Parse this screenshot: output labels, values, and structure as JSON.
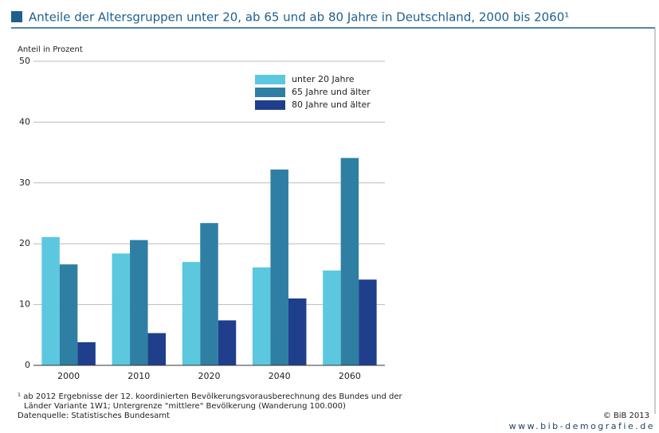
{
  "chart_data": {
    "type": "bar",
    "title": "Anteile der Altersgruppen unter 20, ab 65 und ab 80 Jahre in Deutschland, 2000 bis 2060¹",
    "y_label": "Anteil in Prozent",
    "categories": [
      "2000",
      "2010",
      "2020",
      "2040",
      "2060"
    ],
    "series": [
      {
        "name": "unter 20 Jahre",
        "color": "#5bc8e0",
        "values": [
          21.1,
          18.4,
          17.0,
          16.1,
          15.6
        ]
      },
      {
        "name": "65 Jahre und älter",
        "color": "#2e7fa3",
        "values": [
          16.6,
          20.6,
          23.4,
          32.2,
          34.1
        ]
      },
      {
        "name": "80 Jahre und älter",
        "color": "#1f3f8c",
        "values": [
          3.8,
          5.3,
          7.4,
          11.0,
          14.1
        ]
      }
    ],
    "ylim": [
      0,
      50
    ],
    "yticks": [
      0,
      10,
      20,
      30,
      40,
      50
    ],
    "grid": true,
    "legend": "top-right",
    "footnotes": [
      "¹ ab 2012 Ergebnisse der 12. koordinierten Bevölkerungsvorausberechnung des Bundes und der",
      "Länder Variante 1W1; Untergrenze \"mittlere\" Bevölkerung (Wanderung 100.000)",
      "Datenquelle: Statistisches Bundesamt"
    ],
    "copyright": "© BiB 2013",
    "website": "www.bib-demografie.de"
  }
}
